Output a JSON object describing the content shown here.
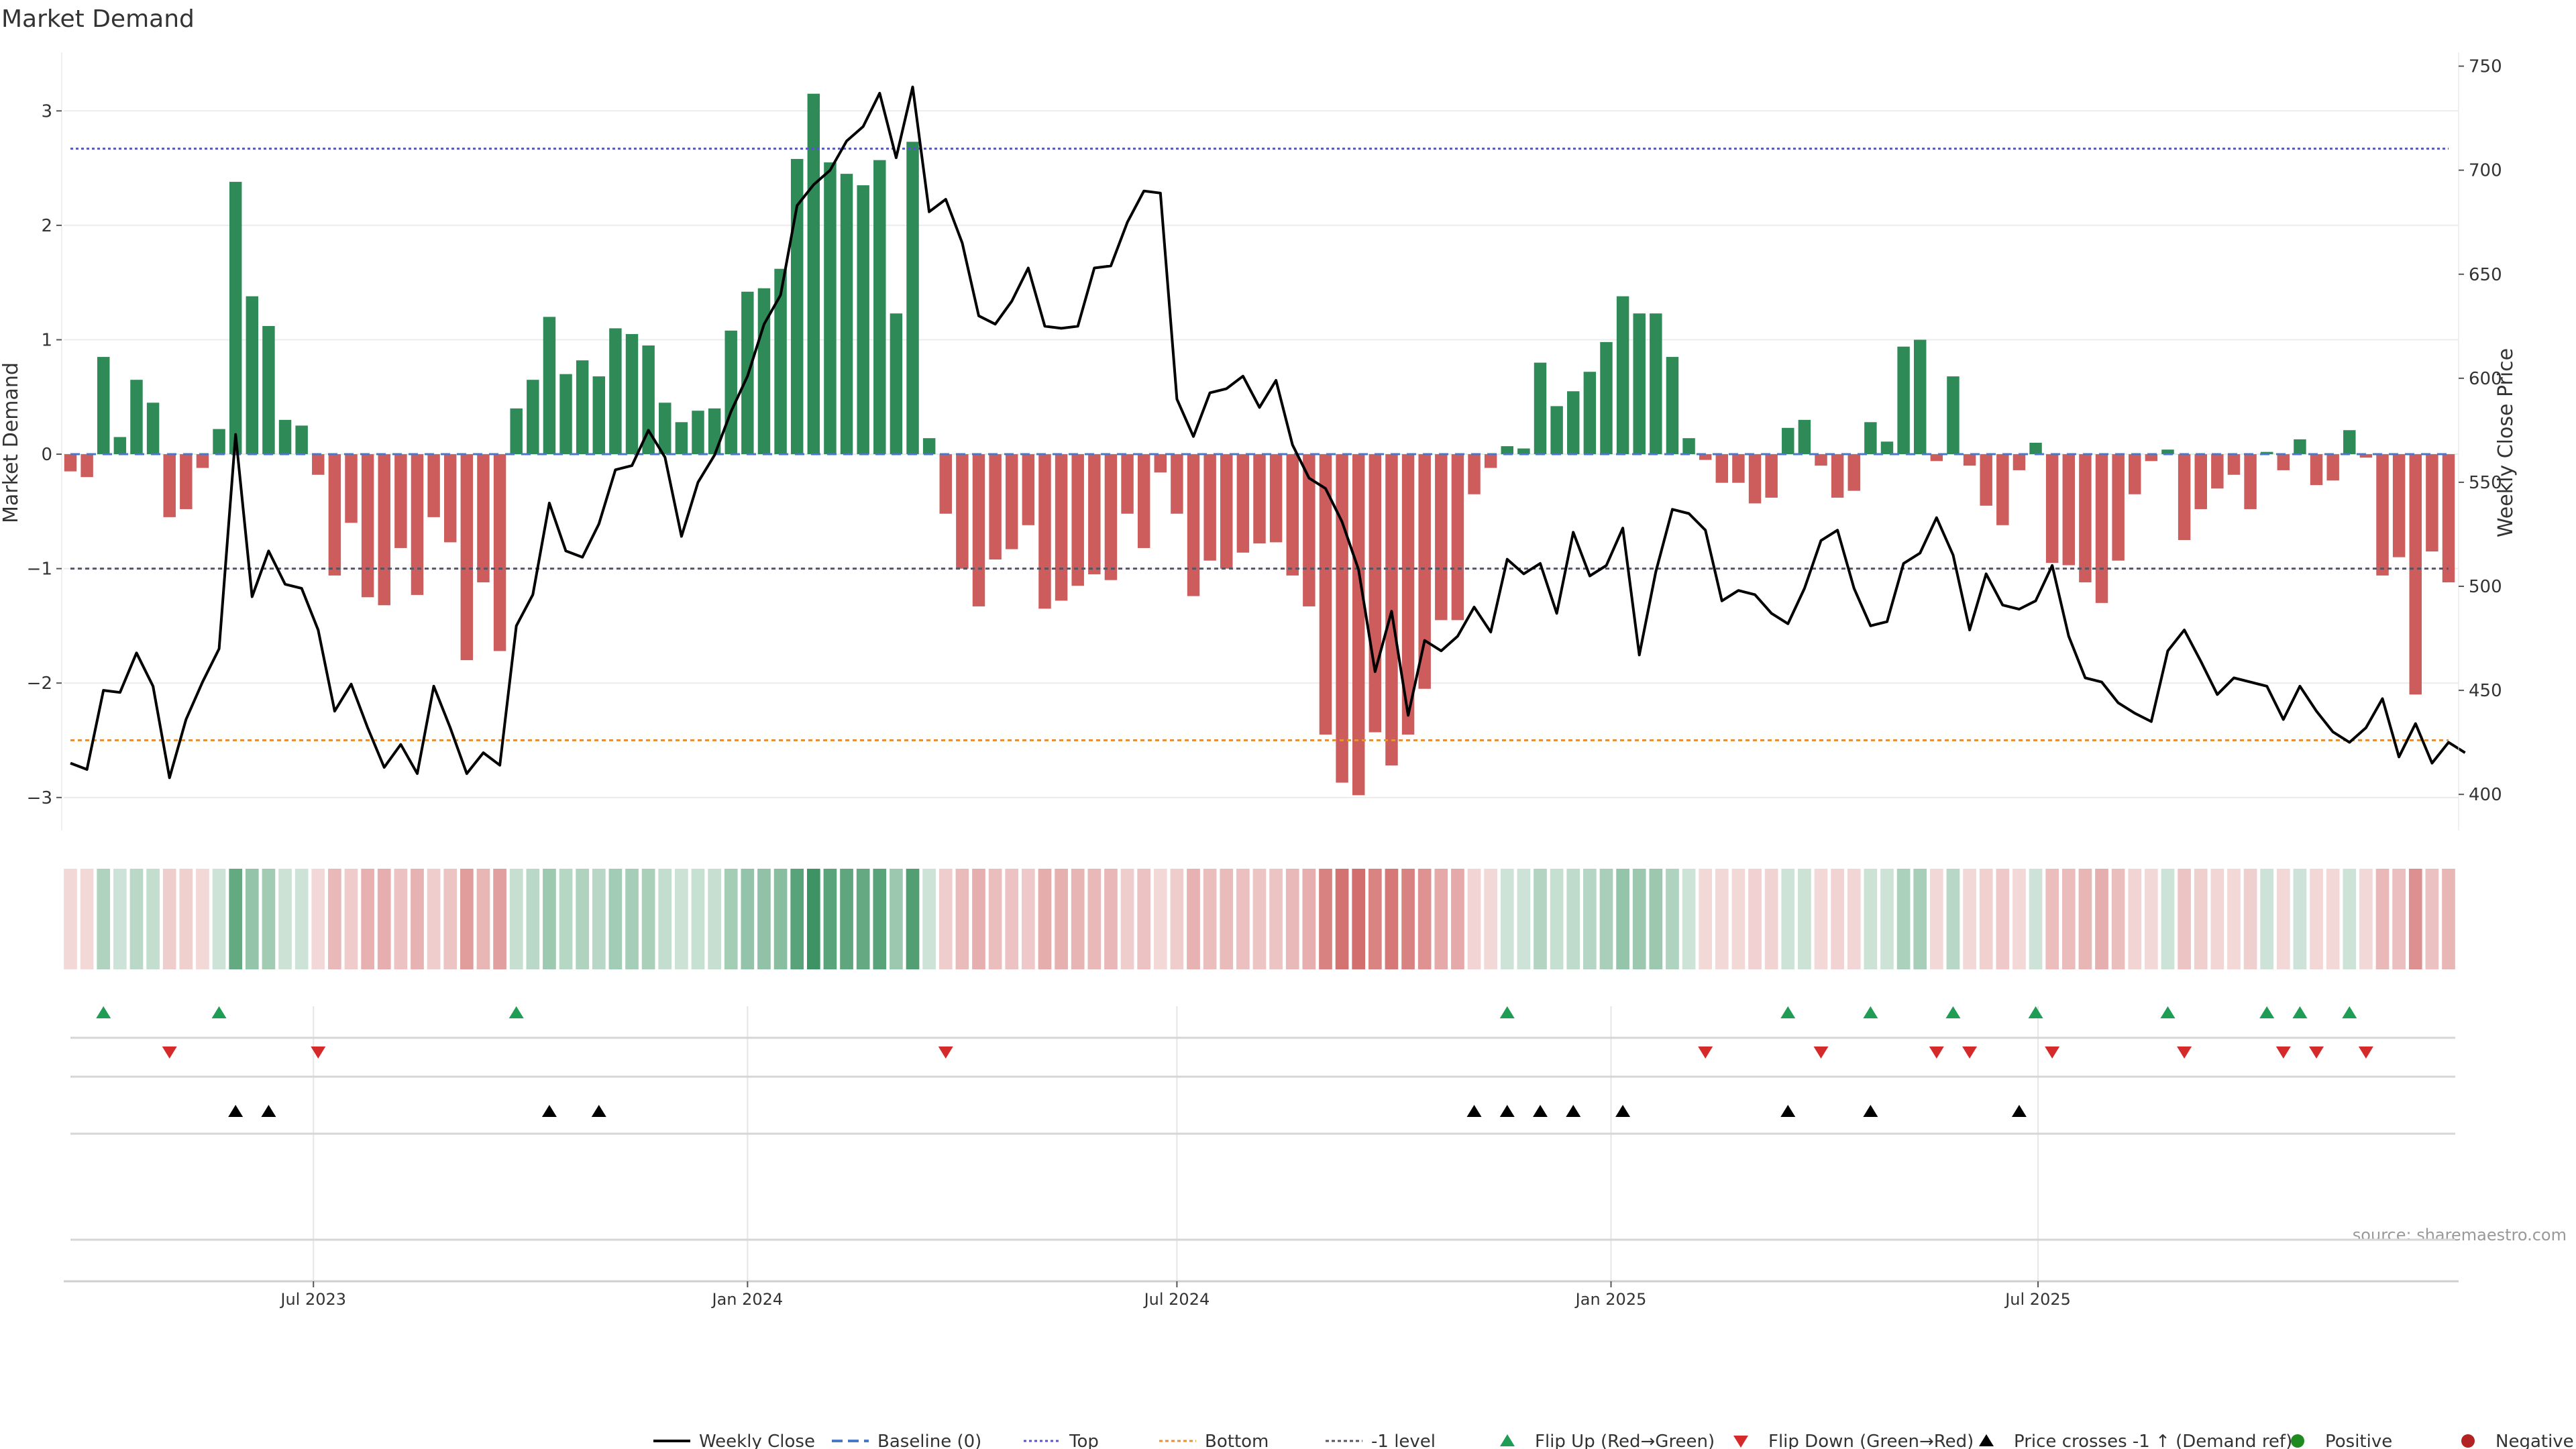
{
  "chart_data": {
    "type": "bar",
    "title": "Market Demand",
    "ylabel_left": "Market Demand",
    "ylabel_right": "Weekly Close Price",
    "source": "source: sharemaestro.com",
    "start_date": "2023-03-20",
    "ylim_demand": [
      -3.3,
      3.5
    ],
    "ylim_price": [
      382,
      756
    ],
    "demand_ticks": [
      "3",
      "2",
      "1",
      "0",
      "−1",
      "−2",
      "−3"
    ],
    "price_ticks": [
      "750",
      "700",
      "650",
      "600",
      "550",
      "500",
      "450",
      "400"
    ],
    "x_ticks": [
      "Jul 2023",
      "Jan 2024",
      "Jul 2024",
      "Jan 2025",
      "Jul 2025"
    ],
    "levels": {
      "top": 2.67,
      "minus_one": -1.0,
      "bottom": -2.5
    },
    "colors": {
      "positive": "#2e8b57",
      "negative": "#cd5c5c",
      "price": "#000000",
      "top": "#5555cc",
      "minus_one": "#555566",
      "bottom": "#e69138",
      "baseline": "#4a78c8",
      "flip_up": "#1f9d55",
      "flip_down": "#d42a2a",
      "cross": "#000000",
      "pos_dot": "#1f8a1f",
      "neg_dot": "#b22222"
    },
    "demand": [
      -0.15,
      -0.2,
      0.85,
      0.15,
      0.65,
      0.45,
      -0.55,
      -0.48,
      -0.12,
      0.22,
      2.38,
      1.38,
      1.12,
      0.3,
      0.25,
      -0.18,
      -1.06,
      -0.6,
      -1.25,
      -1.32,
      -0.82,
      -1.23,
      -0.55,
      -0.77,
      -1.8,
      -1.12,
      -1.72,
      0.4,
      0.65,
      1.2,
      0.7,
      0.82,
      0.68,
      1.1,
      1.05,
      0.95,
      0.45,
      0.28,
      0.38,
      0.4,
      1.08,
      1.42,
      1.45,
      1.62,
      2.58,
      3.15,
      2.55,
      2.45,
      2.35,
      2.57,
      1.23,
      2.73,
      0.14,
      -0.52,
      -1.0,
      -1.33,
      -0.92,
      -0.83,
      -0.62,
      -1.35,
      -1.28,
      -1.15,
      -1.05,
      -1.1,
      -0.52,
      -0.82,
      -0.16,
      -0.52,
      -1.24,
      -0.93,
      -1.0,
      -0.86,
      -0.78,
      -0.77,
      -1.06,
      -1.33,
      -2.45,
      -2.87,
      -2.98,
      -2.43,
      -2.72,
      -2.45,
      -2.05,
      -1.45,
      -1.45,
      -0.35,
      -0.12,
      0.07,
      0.05,
      0.8,
      0.42,
      0.55,
      0.72,
      0.98,
      1.38,
      1.23,
      1.23,
      0.85,
      0.14,
      -0.05,
      -0.25,
      -0.25,
      -0.43,
      -0.38,
      0.23,
      0.3,
      -0.1,
      -0.38,
      -0.32,
      0.28,
      0.11,
      0.94,
      1.0,
      -0.06,
      0.68,
      -0.1,
      -0.45,
      -0.62,
      -0.14,
      0.1,
      -0.95,
      -0.97,
      -1.12,
      -1.3,
      -0.93,
      -0.35,
      -0.06,
      0.04,
      -0.75,
      -0.48,
      -0.3,
      -0.18,
      -0.48,
      0.02,
      -0.14,
      0.13,
      -0.27,
      -0.23,
      0.21,
      -0.03,
      -1.06,
      -0.9,
      -2.1,
      -0.85,
      -1.12
    ],
    "price": [
      415,
      412,
      450,
      449,
      468,
      452,
      408,
      436,
      454,
      470,
      573,
      495,
      517,
      501,
      499,
      479,
      440,
      453,
      432,
      413,
      424,
      410,
      452,
      432,
      410,
      420,
      414,
      481,
      496,
      540,
      517,
      514,
      530,
      556,
      558,
      575,
      562,
      524,
      550,
      563,
      584,
      601,
      626,
      640,
      683,
      693,
      700,
      714,
      721,
      737,
      706,
      740,
      680,
      686,
      665,
      630,
      626,
      637,
      653,
      625,
      624,
      625,
      653,
      654,
      675,
      690,
      689,
      590,
      572,
      593,
      595,
      601,
      586,
      599,
      568,
      552,
      547,
      531,
      508,
      459,
      488,
      438,
      474,
      469,
      476,
      490,
      478,
      513,
      506,
      511,
      487,
      526,
      505,
      510,
      528,
      467,
      507,
      537,
      535,
      527,
      493,
      498,
      496,
      487,
      482,
      499,
      522,
      527,
      499,
      481,
      483,
      511,
      516,
      533,
      515,
      479,
      506,
      491,
      489,
      493,
      510,
      476,
      456,
      454,
      444,
      439,
      435,
      469,
      479,
      464,
      448,
      456,
      454,
      452,
      436,
      452,
      440,
      430,
      425,
      432,
      446,
      418,
      434,
      415,
      425,
      420
    ],
    "flip_up_weeks": [
      2,
      9,
      27,
      87,
      104,
      109,
      114,
      119,
      127,
      133,
      135,
      138
    ],
    "flip_down_weeks": [
      6,
      15,
      53,
      99,
      106,
      113,
      115,
      120,
      128,
      134,
      136,
      139
    ],
    "cross_weeks": [
      10,
      12,
      29,
      32,
      85,
      87,
      89,
      91,
      94,
      104,
      109,
      118
    ],
    "legend": [
      {
        "key": "line",
        "label": "Weekly Close"
      },
      {
        "key": "baseline",
        "label": "Baseline (0)"
      },
      {
        "key": "top",
        "label": "Top"
      },
      {
        "key": "bottom",
        "label": "Bottom"
      },
      {
        "key": "minus_one",
        "label": "-1 level"
      },
      {
        "key": "flip_up",
        "label": "Flip Up (Red→Green)"
      },
      {
        "key": "flip_down",
        "label": "Flip Down (Green→Red)"
      },
      {
        "key": "cross",
        "label": "Price crosses -1 ↑ (Demand ref)"
      },
      {
        "key": "pos",
        "label": "Positive"
      },
      {
        "key": "neg",
        "label": "Negative"
      }
    ]
  }
}
